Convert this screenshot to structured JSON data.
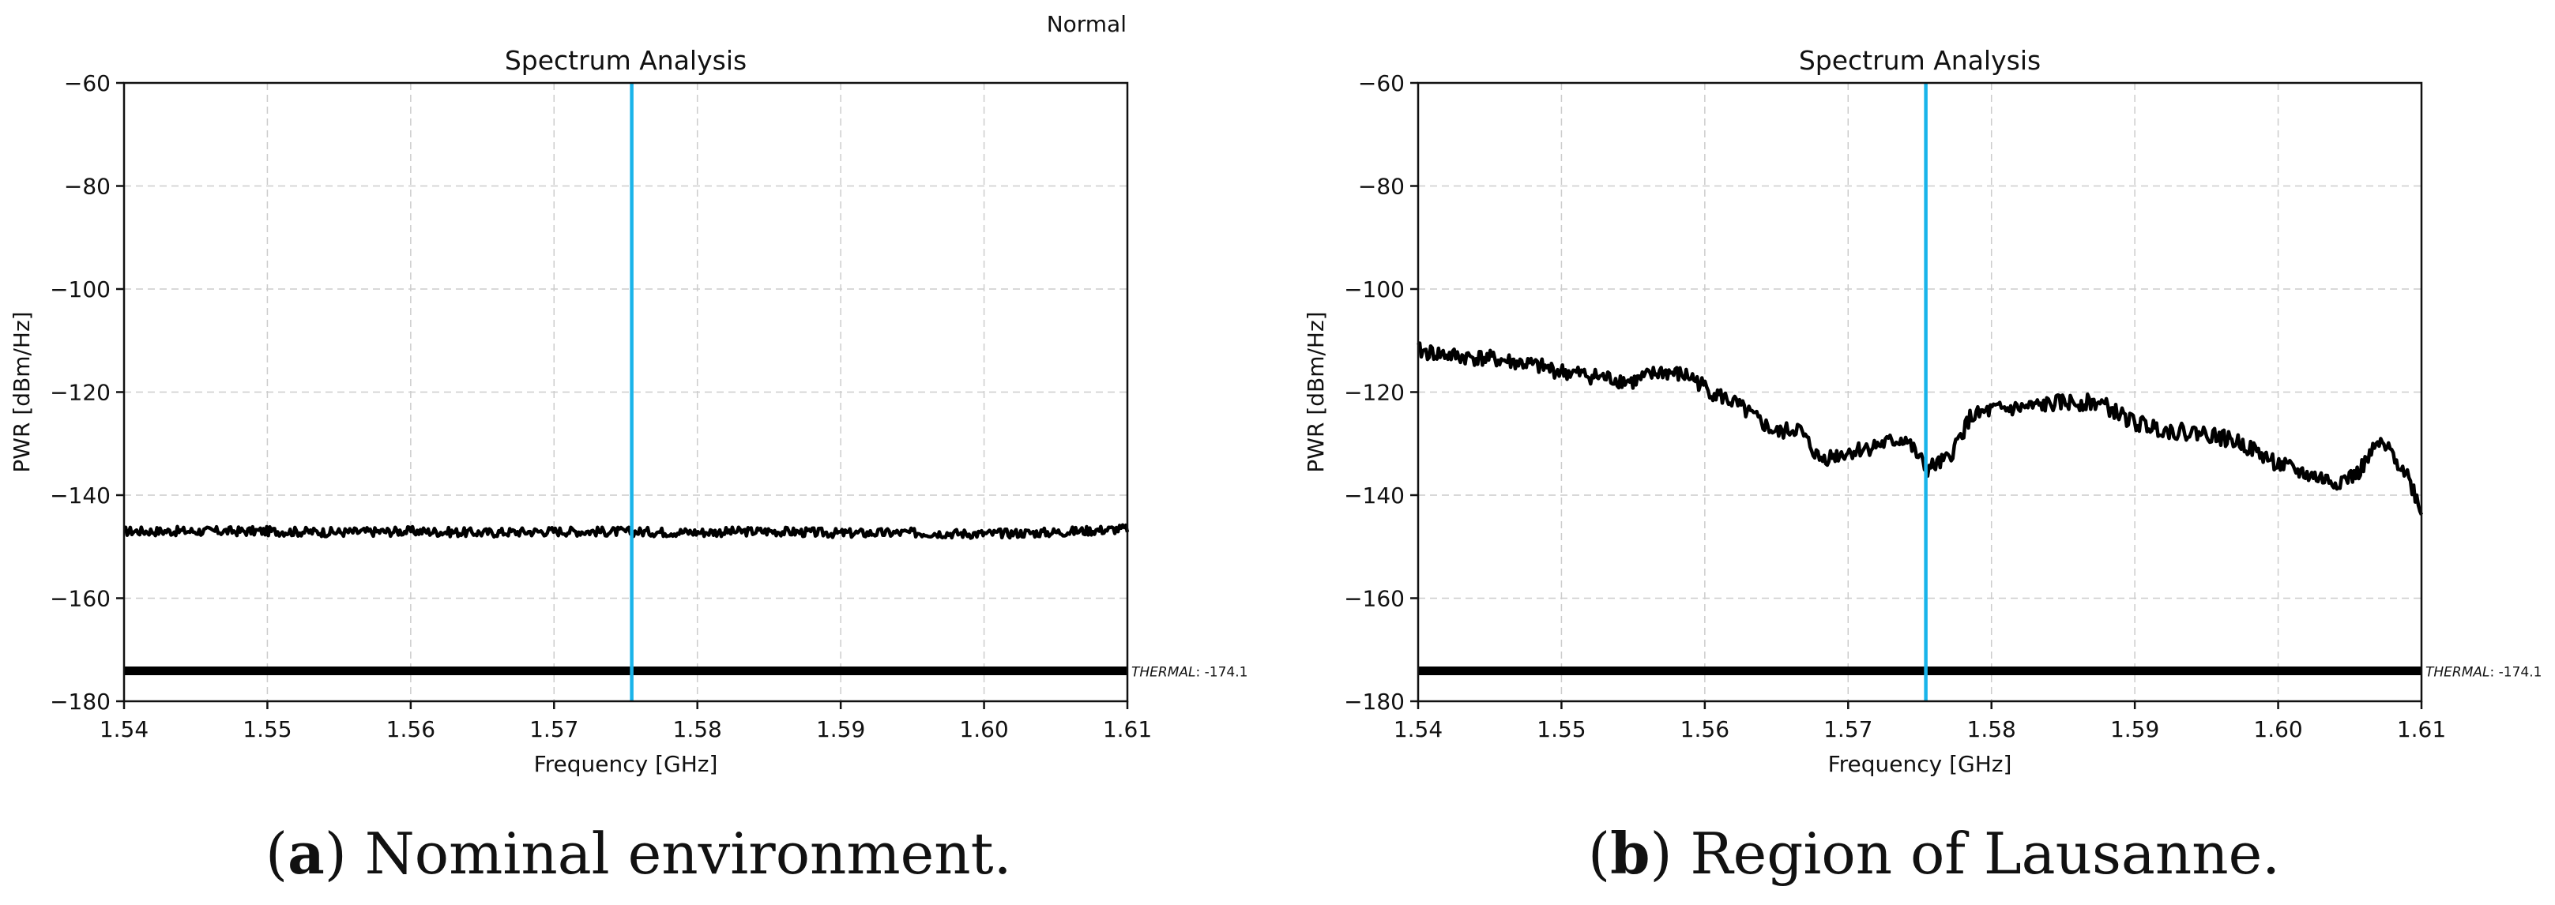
{
  "status_label": "Normal",
  "colors": {
    "signal": "#000000",
    "marker": "#1ab4ea",
    "thermal": "#000000",
    "grid": "#cccccc"
  },
  "captions": [
    {
      "letter": "a",
      "text": ") Nominal environment."
    },
    {
      "letter": "b",
      "text": ") Region of Lausanne."
    }
  ],
  "chart_data": [
    {
      "type": "line",
      "title": "Spectrum Analysis",
      "xlabel": "Frequency [GHz]",
      "ylabel": "PWR [dBm/Hz]",
      "xlim": [
        1.54,
        1.61
      ],
      "ylim": [
        -180,
        -60
      ],
      "xticks": [
        "1.54",
        "1.55",
        "1.56",
        "1.57",
        "1.58",
        "1.59",
        "1.60",
        "1.61"
      ],
      "yticks": [
        "−60",
        "−80",
        "−100",
        "−120",
        "−140",
        "−160",
        "−180"
      ],
      "grid": true,
      "marker_x": 1.57542,
      "thermal_level": -174.1,
      "thermal_label_prefix": "THERMAL",
      "thermal_label_value": ": -174.1",
      "series": [
        {
          "x": [
            1.54,
            1.545,
            1.55,
            1.555,
            1.56,
            1.565,
            1.57,
            1.575,
            1.58,
            1.585,
            1.59,
            1.595,
            1.6,
            1.605,
            1.61
          ],
          "y": [
            -147,
            -147,
            -147,
            -147.2,
            -147,
            -147.3,
            -147,
            -147.1,
            -147.2,
            -147,
            -147.4,
            -147.3,
            -147.5,
            -147.2,
            -146.5
          ]
        }
      ]
    },
    {
      "type": "line",
      "title": "Spectrum Analysis",
      "xlabel": "Frequency [GHz]",
      "ylabel": "PWR [dBm/Hz]",
      "xlim": [
        1.54,
        1.61
      ],
      "ylim": [
        -180,
        -60
      ],
      "xticks": [
        "1.54",
        "1.55",
        "1.56",
        "1.57",
        "1.58",
        "1.59",
        "1.60",
        "1.61"
      ],
      "yticks": [
        "−60",
        "−80",
        "−100",
        "−120",
        "−140",
        "−160",
        "−180"
      ],
      "grid": true,
      "marker_x": 1.57542,
      "thermal_level": -174.1,
      "thermal_label_prefix": "THERMAL",
      "thermal_label_value": ": -174.1",
      "series": [
        {
          "x": [
            1.54,
            1.5425,
            1.545,
            1.5475,
            1.55,
            1.5525,
            1.555,
            1.557,
            1.559,
            1.5605,
            1.562,
            1.5635,
            1.565,
            1.5665,
            1.568,
            1.5695,
            1.571,
            1.5725,
            1.574,
            1.5755,
            1.577,
            1.5785,
            1.58,
            1.5825,
            1.585,
            1.5875,
            1.59,
            1.5925,
            1.595,
            1.5975,
            1.6,
            1.602,
            1.604,
            1.6055,
            1.607,
            1.608,
            1.609,
            1.61
          ],
          "y": [
            -112,
            -113,
            -113.5,
            -114.5,
            -116,
            -117,
            -118,
            -116,
            -117,
            -120,
            -122,
            -125,
            -128,
            -127,
            -133,
            -132,
            -131,
            -130,
            -129,
            -135,
            -133,
            -125,
            -123.5,
            -123,
            -122,
            -122,
            -126,
            -127.5,
            -128,
            -130,
            -134,
            -136,
            -137.5,
            -136,
            -130,
            -132,
            -136,
            -143
          ]
        }
      ]
    }
  ]
}
